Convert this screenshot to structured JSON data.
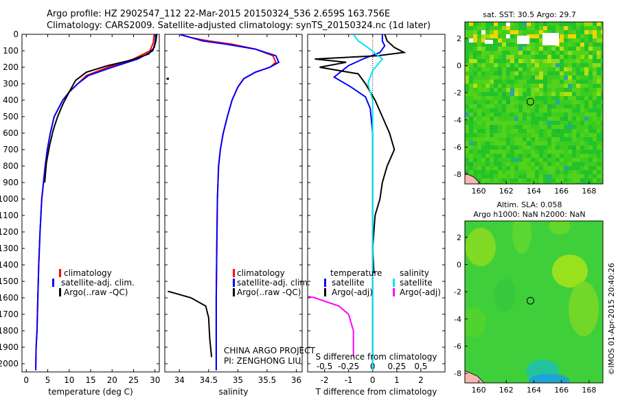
{
  "header": {
    "line1": "Argo profile: HZ 2902547_112 22-Mar-2015 20150324_536 2.659S 163.756E",
    "line2": "Climatology: CARS2009. Satellite-adjusted climatology: synTS_20150324.nc (1d later)"
  },
  "colors": {
    "climatology": "#ff0000",
    "satellite": "#0000ff",
    "argo": "#000000",
    "satellite_s": "#00e5ee",
    "argo_s": "#ff00ff"
  },
  "depth_ticks": [
    "0",
    "100",
    "200",
    "300",
    "400",
    "500",
    "600",
    "700",
    "800",
    "900",
    "1000",
    "1100",
    "1200",
    "1300",
    "1400",
    "1500",
    "1600",
    "1700",
    "1800",
    "1900",
    "2000"
  ],
  "panels": {
    "temperature": {
      "xlabel": "temperature (deg C)",
      "ticks": [
        "0",
        "5",
        "10",
        "15",
        "20",
        "25",
        "30"
      ],
      "legend": [
        "climatology",
        "satellite-adj. clim.",
        "Argo(..raw -QC)"
      ]
    },
    "salinity": {
      "xlabel": "salinity",
      "ticks": [
        "34",
        "34.5",
        "35",
        "35.5",
        "36"
      ],
      "legend": [
        "climatology",
        "satellite-adj. clim.",
        "Argo(..raw -QC)"
      ],
      "note1": "CHINA ARGO PROJECT",
      "note2": "PI: ZENGHONG LIU"
    },
    "difference": {
      "xlabel": "T difference from climatology",
      "top_label": "S difference from climatology",
      "ticks_t": [
        "-2",
        "-1",
        "0",
        "1",
        "2"
      ],
      "ticks_s": [
        "-0.5",
        "-0.25",
        "0",
        "0.25",
        "0.5"
      ],
      "legend_t_title": "temperature",
      "legend_t": [
        "satellite",
        "Argo(-adj)"
      ],
      "legend_s_title": "salinity",
      "legend_s": [
        "satellite",
        "Argo(-adj)"
      ]
    }
  },
  "maps": {
    "sst_title": "sat. SST: 30.5 Argo: 29.7",
    "sla_title1": "Altim. SLA: 0.058",
    "sla_title2": "Argo h1000: NaN h2000: NaN",
    "lon_ticks": [
      "160",
      "162",
      "164",
      "166",
      "168"
    ],
    "lat_ticks": [
      "2",
      "0",
      "-2",
      "-4",
      "-6",
      "-8"
    ]
  },
  "footer": {
    "stamp": "©IMOS 01-Apr-2015 20:40:26"
  },
  "chart_data": [
    {
      "type": "line",
      "title": "",
      "xlabel": "temperature (deg C)",
      "ylabel": "",
      "xlim": [
        -1,
        31
      ],
      "ylim": [
        2050,
        0
      ],
      "series": [
        {
          "name": "climatology",
          "x": [
            29.8,
            29.6,
            28.8,
            25,
            19,
            14,
            12,
            10,
            8.5,
            7.5,
            6.5,
            5.6,
            4.9,
            4.4,
            4,
            3.6,
            3.2,
            2.9,
            2.7,
            2.5,
            2.3,
            2.2
          ],
          "y": [
            0,
            50,
            100,
            150,
            200,
            250,
            300,
            350,
            400,
            450,
            500,
            600,
            700,
            800,
            900,
            1000,
            1200,
            1400,
            1600,
            1800,
            1900,
            2040
          ]
        },
        {
          "name": "satellite-adj. clim.",
          "x": [
            30.2,
            30,
            29.5,
            26,
            20,
            14.5,
            12,
            10,
            8.5,
            7.5,
            6.5,
            5.6,
            4.9,
            4.4,
            4,
            3.6,
            3.2,
            2.9,
            2.7,
            2.5,
            2.3,
            2.2
          ],
          "y": [
            0,
            50,
            100,
            150,
            200,
            250,
            300,
            350,
            400,
            450,
            500,
            600,
            700,
            800,
            900,
            1000,
            1200,
            1400,
            1600,
            1800,
            1900,
            2040
          ]
        },
        {
          "name": "Argo(..raw -QC)",
          "x": [
            30.4,
            30.2,
            29.8,
            28.5,
            24,
            19,
            14,
            11.5,
            10,
            8.6,
            7.3,
            6.3,
            5.4,
            4.7,
            4.3
          ],
          "y": [
            0,
            40,
            80,
            120,
            160,
            190,
            230,
            280,
            350,
            420,
            500,
            580,
            680,
            780,
            900
          ]
        }
      ]
    },
    {
      "type": "line",
      "xlabel": "salinity",
      "xlim": [
        33.75,
        36.1
      ],
      "ylim": [
        2050,
        0
      ],
      "series": [
        {
          "name": "climatology",
          "x": [
            34.0,
            34.2,
            34.5,
            34.9,
            35.3,
            35.6,
            35.65,
            35.55,
            35.3,
            35.1,
            35.0,
            34.9,
            34.82,
            34.75,
            34.7,
            34.67,
            34.65,
            34.64,
            34.63,
            34.63,
            34.63
          ],
          "y": [
            0,
            20,
            40,
            60,
            90,
            130,
            170,
            200,
            230,
            270,
            320,
            400,
            500,
            600,
            700,
            800,
            1000,
            1300,
            1600,
            1900,
            2040
          ]
        },
        {
          "name": "satellite-adj. clim.",
          "x": [
            34.0,
            34.2,
            34.4,
            34.8,
            35.3,
            35.65,
            35.7,
            35.55,
            35.3,
            35.1,
            35.0,
            34.9,
            34.82,
            34.75,
            34.7,
            34.67,
            34.65,
            34.64,
            34.63,
            34.63,
            34.63
          ],
          "y": [
            0,
            20,
            40,
            60,
            90,
            130,
            170,
            200,
            230,
            270,
            320,
            400,
            500,
            600,
            700,
            800,
            1000,
            1300,
            1600,
            1900,
            2040
          ]
        },
        {
          "name": "Argo(..raw -QC)",
          "x": [
            33.8,
            34.2,
            34.45,
            34.5,
            34.52,
            34.55
          ],
          "y": [
            1560,
            1600,
            1650,
            1720,
            1850,
            1960
          ]
        }
      ]
    },
    {
      "type": "line",
      "xlabel": "T difference from climatology",
      "xlim": [
        -2.7,
        3
      ],
      "ylim": [
        2050,
        0
      ],
      "series": [
        {
          "name": "temperature satellite",
          "x": [
            0.4,
            0.4,
            0.5,
            0.3,
            -0.4,
            -1.0,
            -1.6,
            -0.9,
            -0.3,
            -0.1,
            0,
            0,
            0,
            0,
            0
          ],
          "y": [
            0,
            40,
            70,
            110,
            150,
            190,
            260,
            320,
            380,
            450,
            600,
            900,
            1200,
            1500,
            2040
          ]
        },
        {
          "name": "temperature Argo(-adj)",
          "x": [
            0.5,
            0.6,
            0.9,
            1.3,
            0.2,
            -2.4,
            -1.1,
            -2.2,
            -0.6,
            -0.3,
            0.1,
            0.4,
            0.7,
            0.9,
            0.6,
            0.4,
            0.3,
            0.1,
            0,
            0.05
          ],
          "y": [
            0,
            40,
            80,
            110,
            130,
            150,
            170,
            200,
            240,
            300,
            400,
            500,
            600,
            700,
            800,
            900,
            1000,
            1100,
            1300,
            1450
          ]
        },
        {
          "name": "salinity satellite",
          "x": [
            -0.2,
            -0.15,
            -0.05,
            0.1,
            0,
            -0.05,
            0,
            0,
            0,
            0
          ],
          "y": [
            0,
            40,
            80,
            150,
            220,
            300,
            400,
            800,
            1500,
            2040
          ]
        },
        {
          "name": "salinity Argo(-adj)",
          "x": [
            -0.85,
            -0.6,
            -0.35,
            -0.25,
            -0.2,
            -0.2
          ],
          "y": [
            1570,
            1600,
            1650,
            1700,
            1800,
            1960
          ]
        }
      ]
    },
    {
      "type": "heatmap",
      "title": "sat. SST: 30.5 Argo: 29.7",
      "xlim": [
        159,
        169
      ],
      "ylim": [
        -8.7,
        3.2
      ],
      "markers": [
        {
          "lon": 163.75,
          "lat": -2.66
        }
      ]
    },
    {
      "type": "heatmap",
      "title": "Altim. SLA: 0.058",
      "xlim": [
        159,
        169
      ],
      "ylim": [
        -8.7,
        3.2
      ],
      "markers": [
        {
          "lon": 163.75,
          "lat": -2.66
        }
      ]
    }
  ]
}
